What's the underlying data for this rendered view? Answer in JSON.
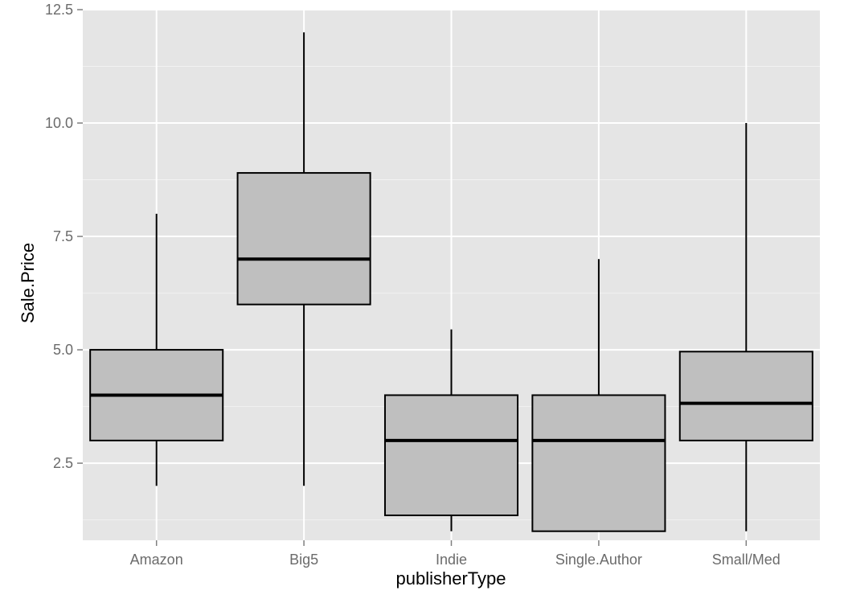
{
  "chart_data": {
    "type": "boxplot",
    "xlabel": "publisherType",
    "ylabel": "Sale.Price",
    "ylim": [
      0.8,
      12.5
    ],
    "yticks": [
      "2.5",
      "5.0",
      "7.5",
      "10.0",
      "12.5"
    ],
    "ytick_values": [
      2.5,
      5.0,
      7.5,
      10.0,
      12.5
    ],
    "minor_yticks": [
      1.25,
      3.75,
      6.25,
      8.75,
      11.25
    ],
    "grid": true,
    "categories": [
      "Amazon",
      "Big5",
      "Indie",
      "Single.Author",
      "Small/Med"
    ],
    "boxes": [
      {
        "min": 2.0,
        "q1": 3.0,
        "median": 4.0,
        "q3": 5.0,
        "max": 8.0
      },
      {
        "min": 2.0,
        "q1": 6.0,
        "median": 7.0,
        "q3": 8.9,
        "max": 12.0
      },
      {
        "min": 1.0,
        "q1": 1.35,
        "median": 3.0,
        "q3": 4.0,
        "max": 5.45
      },
      {
        "min": 1.0,
        "q1": 1.0,
        "median": 3.0,
        "q3": 4.0,
        "max": 7.0
      },
      {
        "min": 1.0,
        "q1": 3.0,
        "median": 3.82,
        "q3": 4.96,
        "max": 10.0
      }
    ],
    "colors": {
      "panel": "#e5e5e5",
      "grid_major": "#ffffff",
      "grid_minor": "#f2f2f2",
      "box_fill": "#bfbfbf",
      "box_stroke": "#000000"
    }
  }
}
